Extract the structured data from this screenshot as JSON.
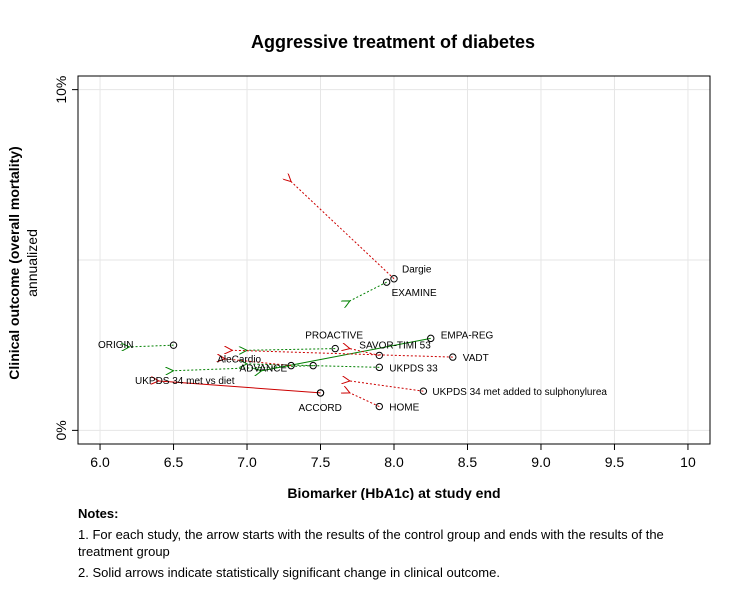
{
  "chart_data": {
    "type": "scatter",
    "title": "Aggressive treatment of diabetes",
    "xlabel": "Biomarker (HbA1c) at study end",
    "ylabel": "Clinical outcome (overall mortality)",
    "ylabel2": "annualized",
    "xlim": [
      5.85,
      10.15
    ],
    "ylim": [
      -0.4,
      10.4
    ],
    "xticks": [
      "6.0",
      "6.5",
      "7.0",
      "7.5",
      "8.0",
      "8.5",
      "9.0",
      "9.5",
      "10"
    ],
    "yticks": [
      {
        "value": 0,
        "label": "0%"
      },
      {
        "value": 10,
        "label": "10%"
      }
    ],
    "grid": true,
    "colors": {
      "significant": "#008000",
      "green": "#008000",
      "red": "#cc0000"
    },
    "studies": [
      {
        "name": "Dargie",
        "control": [
          8.0,
          4.45
        ],
        "treatment": [
          7.3,
          7.3
        ],
        "color": "red",
        "significant": false
      },
      {
        "name": "EXAMINE",
        "control": [
          7.95,
          4.35
        ],
        "treatment": [
          7.7,
          3.8
        ],
        "color": "green",
        "significant": false
      },
      {
        "name": "PROACTIVE",
        "control": [
          7.6,
          2.4
        ],
        "treatment": [
          7.0,
          2.35
        ],
        "color": "green",
        "significant": false
      },
      {
        "name": "EMPA-REG",
        "control": [
          8.25,
          2.7
        ],
        "treatment": [
          7.1,
          1.75
        ],
        "color": "green",
        "significant": true
      },
      {
        "name": "SAVOR-TIMI 53",
        "control": [
          7.9,
          2.2
        ],
        "treatment": [
          7.7,
          2.4
        ],
        "color": "red",
        "significant": false
      },
      {
        "name": "VADT",
        "control": [
          8.4,
          2.15
        ],
        "treatment": [
          6.9,
          2.35
        ],
        "color": "red",
        "significant": false
      },
      {
        "name": "UKPDS 33",
        "control": [
          7.9,
          1.85
        ],
        "treatment": [
          7.0,
          1.95
        ],
        "color": "green",
        "significant": false
      },
      {
        "name": "ORIGIN",
        "control": [
          6.5,
          2.5
        ],
        "treatment": [
          6.2,
          2.45
        ],
        "color": "green",
        "significant": false
      },
      {
        "name": "AleCardio",
        "control": [
          7.3,
          1.9
        ],
        "treatment": [
          6.85,
          2.1
        ],
        "color": "red",
        "significant": false
      },
      {
        "name": "ADVANCE",
        "control": [
          7.45,
          1.9
        ],
        "treatment": [
          6.5,
          1.75
        ],
        "color": "green",
        "significant": false
      },
      {
        "name": "UKPDS 34 met vs diet",
        "control": [
          7.5,
          1.1
        ],
        "treatment": [
          6.4,
          1.45
        ],
        "color": "red",
        "significant": true
      },
      {
        "name": "ACCORD",
        "control": [
          7.5,
          1.1
        ],
        "treatment": [
          7.5,
          1.1
        ],
        "color": "red",
        "significant": false
      },
      {
        "name": "UKPDS 34 met added to sulphonylurea",
        "control": [
          8.2,
          1.15
        ],
        "treatment": [
          7.7,
          1.45
        ],
        "color": "red",
        "significant": false
      },
      {
        "name": "HOME",
        "control": [
          7.9,
          0.7
        ],
        "treatment": [
          7.7,
          1.1
        ],
        "color": "red",
        "significant": false
      }
    ]
  },
  "notes": {
    "heading": "Notes:",
    "items": [
      "1. For each study, the arrow starts with the results of the control group and ends with the results of the treatment group",
      "2. Solid arrows indicate statistically significant change in clinical outcome."
    ]
  }
}
